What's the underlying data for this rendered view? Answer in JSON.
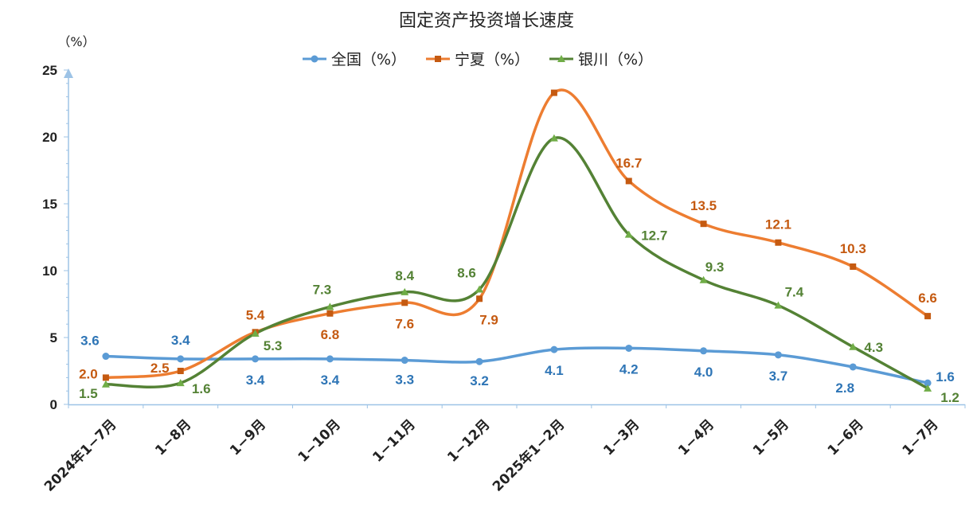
{
  "chart_data": {
    "type": "line",
    "title": "固定资产投资增长速度",
    "ylabel": "（%）",
    "xlabel": "",
    "ylim": [
      0,
      25
    ],
    "yticks": [
      0,
      5,
      10,
      15,
      20,
      25
    ],
    "categories": [
      "2024年1−7月",
      "1−8月",
      "1−9月",
      "1−10月",
      "1−11月",
      "1−12月",
      "2025年1−2月",
      "1−3月",
      "1−4月",
      "1−5月",
      "1−6月",
      "1−7月"
    ],
    "legend_position": "top",
    "grid": false,
    "series": [
      {
        "name": "全国（%）",
        "color": "#5b9bd5",
        "marker": "circle",
        "values": [
          3.6,
          3.4,
          3.4,
          3.4,
          3.3,
          3.2,
          4.1,
          4.2,
          4.0,
          3.7,
          2.8,
          1.6
        ],
        "labels": [
          "3.6",
          "3.4",
          "3.4",
          "3.4",
          "3.3",
          "3.2",
          "4.1",
          "4.2",
          "4.0",
          "3.7",
          "2.8",
          "1.6"
        ]
      },
      {
        "name": "宁夏（%）",
        "color": "#ed7d31",
        "marker": "square",
        "values": [
          2.0,
          2.5,
          5.4,
          6.8,
          7.6,
          7.9,
          23.3,
          16.7,
          13.5,
          12.1,
          10.3,
          6.6
        ],
        "labels": [
          "2.0",
          "2.5",
          "5.4",
          "6.8",
          "7.6",
          "7.9",
          "",
          "16.7",
          "13.5",
          "12.1",
          "10.3",
          "6.6"
        ]
      },
      {
        "name": "银川（%）",
        "color": "#548235",
        "marker": "triangle",
        "values": [
          1.5,
          1.6,
          5.3,
          7.3,
          8.4,
          8.6,
          19.9,
          12.7,
          9.3,
          7.4,
          4.3,
          1.2
        ],
        "labels": [
          "1.5",
          "1.6",
          "5.3",
          "7.3",
          "8.4",
          "8.6",
          "",
          "12.7",
          "9.3",
          "7.4",
          "4.3",
          "1.2"
        ]
      }
    ]
  },
  "colors": {
    "axis": "#9dc3e6",
    "label_blue": "#2e75b6",
    "label_orange": "#c55a11",
    "label_green": "#548235"
  }
}
